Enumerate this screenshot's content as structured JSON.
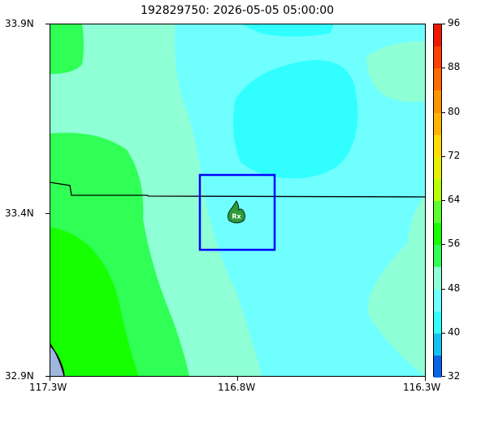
{
  "title": "192829750: 2026-05-05 05:00:00",
  "map": {
    "y_ticks": [
      "33.9N",
      "33.4N",
      "32.9N"
    ],
    "x_ticks": [
      "117.3W",
      "116.8W",
      "116.3W"
    ],
    "marker_label": "Rx",
    "marker_icon": "fire-icon",
    "box_color": "#0000ff"
  },
  "colorbar": {
    "ticks": [
      "96",
      "88",
      "80",
      "72",
      "64",
      "56",
      "48",
      "40",
      "32"
    ],
    "range": [
      32,
      96
    ],
    "levels": [
      {
        "from": 32,
        "to": 36,
        "color": "#0a64e8"
      },
      {
        "from": 36,
        "to": 40,
        "color": "#13c2f4"
      },
      {
        "from": 40,
        "to": 44,
        "color": "#31ffff"
      },
      {
        "from": 44,
        "to": 48,
        "color": "#6fffff"
      },
      {
        "from": 48,
        "to": 52,
        "color": "#8fffd6"
      },
      {
        "from": 52,
        "to": 56,
        "color": "#30ff55"
      },
      {
        "from": 56,
        "to": 60,
        "color": "#15ff00"
      },
      {
        "from": 60,
        "to": 64,
        "color": "#5cff2a"
      },
      {
        "from": 64,
        "to": 68,
        "color": "#b8ff00"
      },
      {
        "from": 68,
        "to": 72,
        "color": "#e8f000"
      },
      {
        "from": 72,
        "to": 76,
        "color": "#ffdc00"
      },
      {
        "from": 76,
        "to": 80,
        "color": "#ffb400"
      },
      {
        "from": 80,
        "to": 84,
        "color": "#ff9400"
      },
      {
        "from": 84,
        "to": 88,
        "color": "#ff6a00"
      },
      {
        "from": 88,
        "to": 92,
        "color": "#ff4000"
      },
      {
        "from": 92,
        "to": 96,
        "color": "#f01800"
      }
    ]
  }
}
